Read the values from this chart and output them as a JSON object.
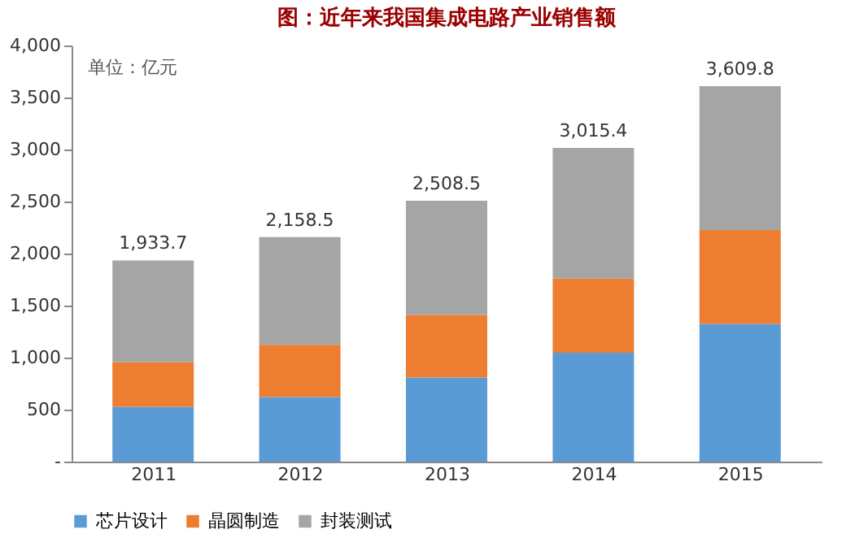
{
  "chart_data": {
    "type": "bar",
    "title": "图：近年来我国集成电路产业销售额",
    "stacked": true,
    "categories": [
      "2011",
      "2012",
      "2013",
      "2014",
      "2015"
    ],
    "series": [
      {
        "name": "芯片设计",
        "color": "#5b9bd5",
        "values": [
          526.4,
          621.7,
          808.8,
          1047.4,
          1325.0
        ]
      },
      {
        "name": "晶圆制造",
        "color": "#ed7d31",
        "values": [
          431.6,
          501.1,
          600.9,
          712.1,
          900.8
        ]
      },
      {
        "name": "封装测试",
        "color": "#a5a5a5",
        "values": [
          975.7,
          1035.7,
          1098.8,
          1255.9,
          1384.0
        ]
      }
    ],
    "totals": [
      "1,933.7",
      "2,158.5",
      "2,508.5",
      "3,015.4",
      "3,609.8"
    ],
    "annotations": [
      "单位：亿元"
    ],
    "ylim": [
      0,
      4000
    ],
    "yticks": [
      {
        "value": 0,
        "label": "-"
      },
      500,
      {
        "value": 1000,
        "label": "1,000"
      },
      {
        "value": 1500,
        "label": "1,500"
      },
      {
        "value": 2000,
        "label": "2,000"
      },
      {
        "value": 2500,
        "label": "2,500"
      },
      {
        "value": 3000,
        "label": "3,000"
      },
      {
        "value": 3500,
        "label": "3,500"
      },
      {
        "value": 4000,
        "label": "4,000"
      }
    ],
    "grid": false,
    "legend": "bottom"
  }
}
